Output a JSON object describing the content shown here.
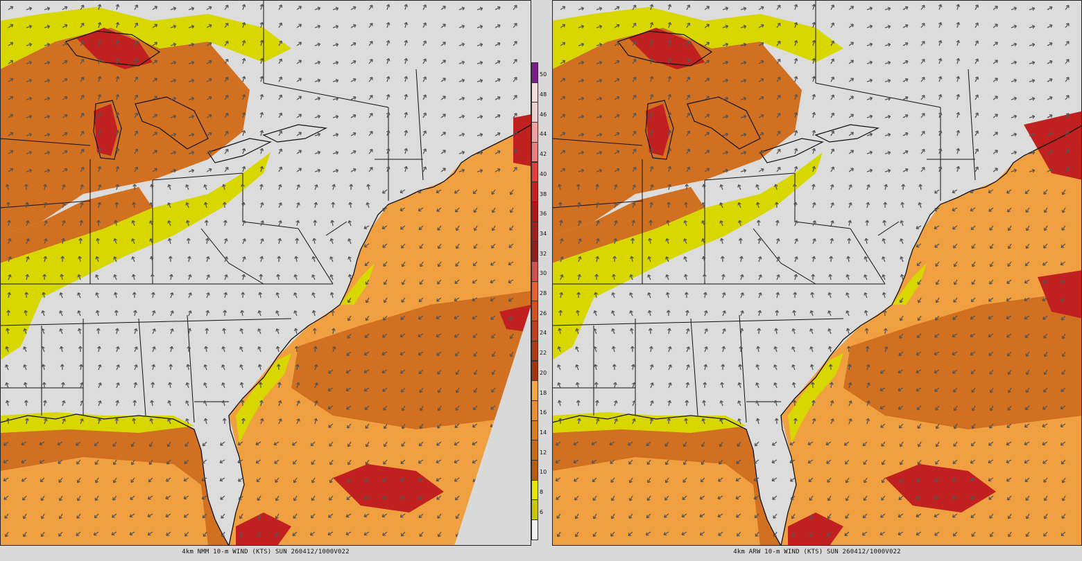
{
  "panels": [
    {
      "caption": "4km NMM 10-m WIND (KTS) SUN 260412/1000V022"
    },
    {
      "caption": "4km ARW 10-m WIND (KTS) SUN 260412/1000V022"
    }
  ],
  "colorbar": {
    "labels": [
      "50",
      "48",
      "46",
      "44",
      "42",
      "40",
      "38",
      "36",
      "34",
      "32",
      "30",
      "28",
      "26",
      "24",
      "22",
      "20",
      "18",
      "16",
      "14",
      "12",
      "10",
      "8",
      "6"
    ],
    "colors": [
      "#7a1d8c",
      "#f2dcdc",
      "#ead0d0",
      "#f4a0a0",
      "#e98080",
      "#e04040",
      "#c82020",
      "#b01818",
      "#a02020",
      "#902020",
      "#d05050",
      "#e86030",
      "#d25020",
      "#c24020",
      "#b23818",
      "#a43410",
      "#f4a640",
      "#e89030",
      "#d87c20",
      "#c86c18",
      "#b85c10",
      "#e6e600",
      "#c8c800",
      "#f0f0f0"
    ]
  },
  "colors": {
    "land_calm": "#dcdcdc",
    "yellow": "#d8d800",
    "orange": "#f0a040",
    "dark_orange": "#d07020",
    "red": "#c02020",
    "arrow": "#555555",
    "border": "#111111"
  }
}
